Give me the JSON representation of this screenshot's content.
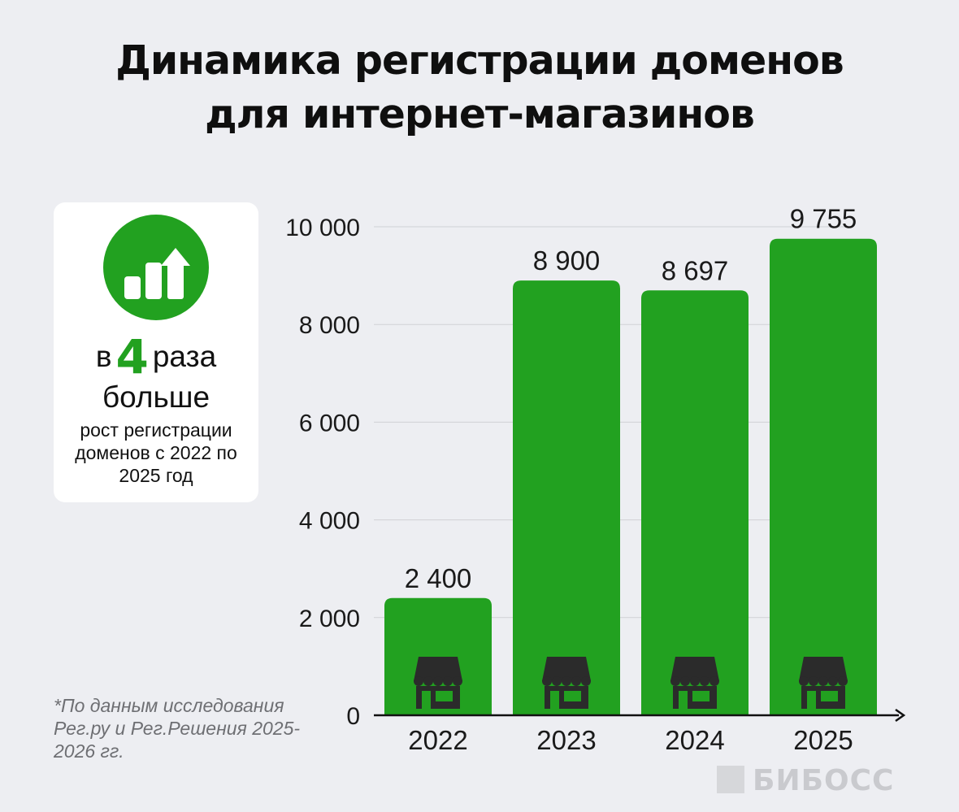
{
  "title": {
    "line1": "Динамика регистрации доменов",
    "line2": "для интернет-магазинов"
  },
  "highlight": {
    "prefix": "в",
    "number": "4",
    "suffix": "раза",
    "line2": "больше",
    "description": "рост регистрации доменов с 2022 по 2025 год",
    "icon": "growth-chart-arrow-icon"
  },
  "source_note": "*По данным исследования Рег.ру и Рег.Решения 2025-2026 гг.",
  "brand": "БИБОСС",
  "colors": {
    "bar": "#22a120",
    "background": "#edeef2",
    "card": "#ffffff",
    "store_icon": "#2b2b2b"
  },
  "chart_data": {
    "type": "bar",
    "title": "Динамика регистрации доменов для интернет-магазинов",
    "categories": [
      "2022",
      "2023",
      "2024",
      "2025"
    ],
    "values": [
      2400,
      8900,
      8697,
      9755
    ],
    "value_labels": [
      "2 400",
      "8 900",
      "8 697",
      "9 755"
    ],
    "ylim": [
      0,
      10000
    ],
    "yticks": [
      0,
      2000,
      4000,
      6000,
      8000,
      10000
    ],
    "ytick_labels": [
      "0",
      "2 000",
      "4 000",
      "6 000",
      "8 000",
      "10 000"
    ],
    "grid": true,
    "bar_icon": "storefront-icon",
    "xlabel": "",
    "ylabel": ""
  }
}
